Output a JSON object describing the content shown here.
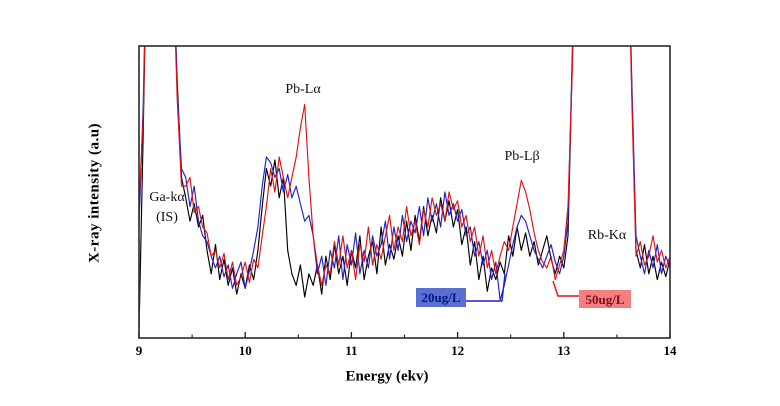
{
  "figure": {
    "y_axis_label": "X-ray intensity (a.u)",
    "x_axis_label": "Energy (ekv)",
    "annotations": {
      "ga_line1": "Ga-kα",
      "ga_line2": "(IS)",
      "pb_l_alpha": "Pb-Lα",
      "pb_l_beta": "Pb-Lβ",
      "rb_k_alpha": "Rb-Kα"
    },
    "legend": {
      "series_20": "20ug/L",
      "series_50": "50ug/L"
    }
  },
  "colors": {
    "frame": "#1c1c1c",
    "black_curve": "#000000",
    "blue_curve": "#2121cc",
    "red_curve": "#e01212",
    "legend20_bg": "#5b6ed2",
    "legend20_text": "#001b86",
    "legend50_bg": "#f57e7e",
    "legend50_text": "#7d0d18"
  },
  "chart_data": {
    "type": "line",
    "title": "",
    "xlabel": "Energy (ekv)",
    "ylabel": "X-ray intensity (a.u)",
    "xlim": [
      9,
      14
    ],
    "ylim": [
      0,
      100
    ],
    "y_axis_unlabeled": "arbitrary units, no y ticks shown; values below are % of axis height, 150 = peak off-scale",
    "grid": false,
    "legend_position": "inside-bottom callout boxes",
    "x_ticks": [
      9,
      10,
      11,
      12,
      13,
      14
    ],
    "x_minor_ticks": [
      9.5,
      10.5,
      11.5,
      12.5,
      13.5
    ],
    "x_start": 9,
    "x_step": 0.04,
    "annotations": [
      {
        "text": "Ga-kα (IS)",
        "x": 9.25,
        "meaning": "internal standard peak, off-scale"
      },
      {
        "text": "Pb-Lα",
        "x": 10.53
      },
      {
        "text": "Pb-Lβ",
        "x": 12.6
      },
      {
        "text": "Rb-Kα",
        "x": 13.4,
        "meaning": "off-scale peak 13.1-13.6"
      }
    ],
    "series": [
      {
        "name": "",
        "label": "unlabeled black spectrum",
        "color": "#000000",
        "values": [
          2,
          70,
          150,
          150,
          150,
          150,
          150,
          150,
          130,
          88,
          55,
          48,
          40,
          46,
          38,
          42,
          30,
          22,
          32,
          20,
          27,
          18,
          24,
          15,
          22,
          17,
          25,
          20,
          30,
          45,
          58,
          52,
          61,
          48,
          55,
          30,
          22,
          18,
          25,
          14,
          22,
          18,
          25,
          15,
          28,
          20,
          32,
          22,
          28,
          18,
          30,
          24,
          35,
          20,
          28,
          33,
          22,
          38,
          25,
          32,
          27,
          35,
          28,
          40,
          30,
          42,
          33,
          45,
          35,
          42,
          36,
          48,
          40,
          47,
          38,
          44,
          32,
          38,
          25,
          33,
          20,
          28,
          16,
          24,
          20,
          26,
          22,
          35,
          28,
          38,
          30,
          36,
          28,
          33,
          25,
          30,
          35,
          27,
          22,
          28,
          24,
          35,
          95,
          150,
          150,
          150,
          150,
          150,
          150,
          150,
          150,
          150,
          150,
          150,
          150,
          150,
          85,
          30,
          24,
          32,
          22,
          28,
          20,
          26,
          21,
          27
        ]
      },
      {
        "name": "20ug/L",
        "label": "20ug/L",
        "color": "#2121cc",
        "values": [
          38,
          80,
          150,
          150,
          150,
          150,
          150,
          150,
          132,
          85,
          58,
          55,
          45,
          52,
          40,
          35,
          33,
          28,
          24,
          28,
          21,
          25,
          17,
          22,
          26,
          17,
          23,
          30,
          38,
          52,
          62,
          60,
          55,
          58,
          50,
          56,
          48,
          52,
          46,
          40,
          42,
          35,
          22,
          28,
          18,
          30,
          24,
          35,
          20,
          32,
          25,
          36,
          22,
          30,
          24,
          35,
          28,
          32,
          40,
          27,
          38,
          30,
          42,
          33,
          40,
          36,
          45,
          35,
          48,
          40,
          46,
          38,
          50,
          42,
          46,
          40,
          44,
          35,
          38,
          28,
          33,
          25,
          30,
          20,
          26,
          13,
          18,
          25,
          32,
          38,
          42,
          40,
          35,
          30,
          27,
          24,
          28,
          32,
          26,
          22,
          28,
          40,
          98,
          150,
          150,
          150,
          150,
          150,
          150,
          150,
          150,
          150,
          150,
          150,
          150,
          150,
          88,
          35,
          28,
          22,
          30,
          24,
          32,
          22,
          28,
          24
        ]
      },
      {
        "name": "50ug/L",
        "label": "50ug/L",
        "color": "#e01212",
        "values": [
          46,
          75,
          150,
          150,
          150,
          150,
          150,
          150,
          128,
          82,
          52,
          52,
          55,
          43,
          45,
          38,
          36,
          28,
          30,
          24,
          29,
          20,
          26,
          18,
          21,
          26,
          19,
          27,
          24,
          35,
          45,
          58,
          50,
          62,
          55,
          48,
          55,
          62,
          72,
          80,
          55,
          35,
          25,
          18,
          25,
          22,
          33,
          25,
          35,
          24,
          30,
          20,
          32,
          26,
          38,
          25,
          32,
          27,
          35,
          42,
          30,
          38,
          33,
          45,
          35,
          40,
          32,
          44,
          38,
          48,
          42,
          46,
          40,
          50,
          44,
          47,
          38,
          42,
          33,
          38,
          28,
          35,
          24,
          30,
          22,
          28,
          33,
          30,
          38,
          46,
          54,
          50,
          44,
          36,
          30,
          26,
          24,
          28,
          20,
          25,
          30,
          45,
          92,
          150,
          150,
          150,
          150,
          150,
          150,
          150,
          150,
          150,
          150,
          150,
          150,
          150,
          82,
          28,
          33,
          25,
          28,
          35,
          26,
          30,
          24,
          28
        ]
      }
    ]
  }
}
